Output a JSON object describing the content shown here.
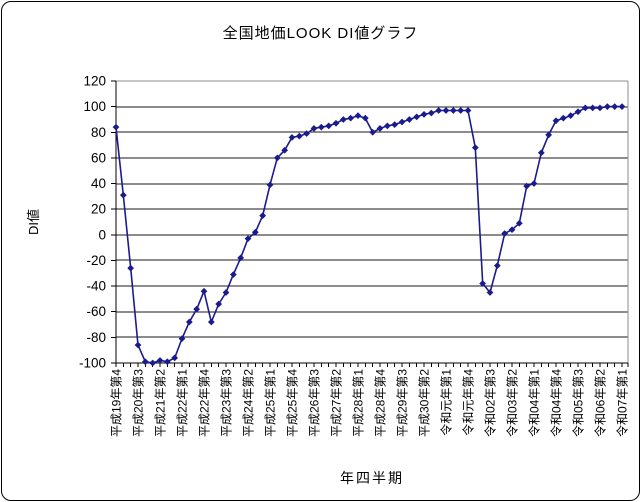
{
  "page": {
    "background_color": "#ffffff",
    "frame_border_color": "#000000"
  },
  "chart_data": {
    "type": "line",
    "title": "全国地価LOOK DI値グラフ",
    "xlabel": "年四半期",
    "ylabel": "DI値",
    "ylim": [
      -100,
      120
    ],
    "y_tick_step": 20,
    "y_tick_labels": [
      "120",
      "100",
      "80",
      "60",
      "40",
      "20",
      "0",
      "-20",
      "-40",
      "-60",
      "-80",
      "-100"
    ],
    "x_tick_label_every": 3,
    "x_tick_labels_shown": [
      "平成19年第4",
      "平成20年第3",
      "平成21年第2",
      "平成22年第1",
      "平成22年第4",
      "平成23年第3",
      "平成24年第2",
      "平成25年第1",
      "平成25年第4",
      "平成26年第3",
      "平成27年第2",
      "平成28年第1",
      "平成28年第4",
      "平成29年第3",
      "平成30年第2",
      "令和元年第1",
      "令和元年第4",
      "令和02年第3",
      "令和03年第2",
      "令和04年第1",
      "令和04年第4",
      "令和05年第3",
      "令和06年第2",
      "令和07年第1"
    ],
    "categories": [
      "平成19年第4",
      "平成20年第1",
      "平成20年第2",
      "平成20年第3",
      "平成20年第4",
      "平成21年第1",
      "平成21年第2",
      "平成21年第3",
      "平成21年第4",
      "平成22年第1",
      "平成22年第2",
      "平成22年第3",
      "平成22年第4",
      "平成23年第1",
      "平成23年第2",
      "平成23年第3",
      "平成23年第4",
      "平成24年第1",
      "平成24年第2",
      "平成24年第3",
      "平成24年第4",
      "平成25年第1",
      "平成25年第2",
      "平成25年第3",
      "平成25年第4",
      "平成26年第1",
      "平成26年第2",
      "平成26年第3",
      "平成26年第4",
      "平成27年第1",
      "平成27年第2",
      "平成27年第3",
      "平成27年第4",
      "平成28年第1",
      "平成28年第2",
      "平成28年第3",
      "平成28年第4",
      "平成29年第1",
      "平成29年第2",
      "平成29年第3",
      "平成29年第4",
      "平成30年第1",
      "平成30年第2",
      "平成30年第3",
      "平成30年第4",
      "令和元年第1",
      "令和元年第2",
      "令和元年第3",
      "令和元年第4",
      "令和02年第1",
      "令和02年第2",
      "令和02年第3",
      "令和02年第4",
      "令和03年第1",
      "令和03年第2",
      "令和03年第3",
      "令和03年第4",
      "令和04年第1",
      "令和04年第2",
      "令和04年第3",
      "令和04年第4",
      "令和05年第1",
      "令和05年第2",
      "令和05年第3",
      "令和05年第4",
      "令和06年第1",
      "令和06年第2",
      "令和06年第3",
      "令和06年第4",
      "令和07年第1"
    ],
    "values": [
      84,
      31,
      -26,
      -86,
      -99,
      -100,
      -98,
      -99,
      -96,
      -81,
      -68,
      -58,
      -44,
      -68,
      -54,
      -45,
      -31,
      -18,
      -3,
      2,
      15,
      39,
      60,
      66,
      76,
      77,
      79,
      83,
      84,
      85,
      87,
      90,
      91,
      93,
      91,
      80,
      83,
      85,
      86,
      88,
      90,
      92,
      94,
      95,
      97,
      97,
      97,
      97,
      97,
      68,
      -38,
      -45,
      -24,
      1,
      4,
      9,
      38,
      40,
      64,
      78,
      89,
      91,
      93,
      96,
      99,
      99,
      99,
      100,
      100,
      100
    ],
    "grid": true,
    "legend": "none",
    "series_color": "#1b1b8e",
    "grid_color": "#1a1a1a",
    "axis_color": "#000000",
    "plot_border_color": "#8c8c8c",
    "text_color": "#000000",
    "marker": "diamond"
  }
}
